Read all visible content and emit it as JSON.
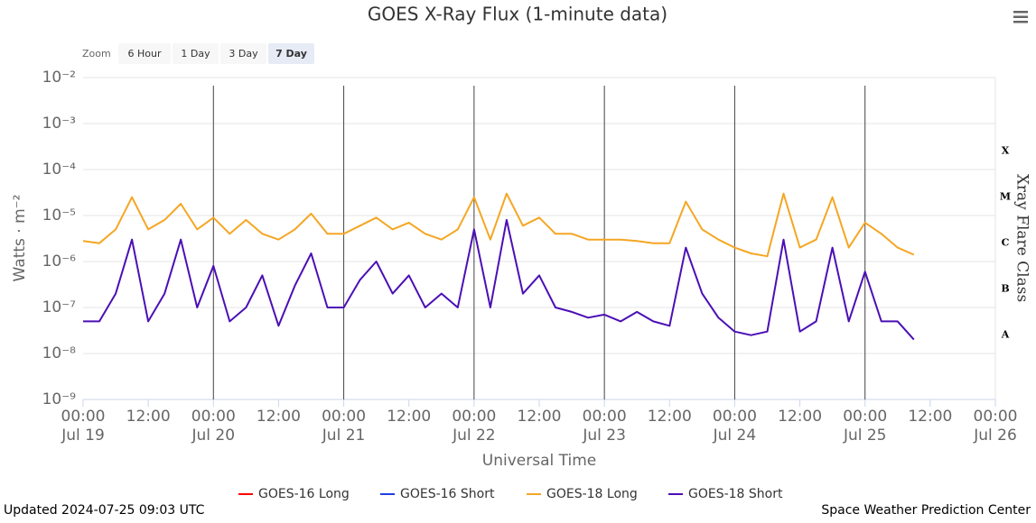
{
  "chart_data": {
    "type": "line",
    "title": "GOES X-Ray Flux (1-minute data)",
    "zoom": {
      "label": "Zoom",
      "buttons": [
        "6 Hour",
        "1 Day",
        "3 Day",
        "7 Day"
      ],
      "selected": 3
    },
    "y_label": "Watts · m⁻²",
    "x_label": "Universal Time",
    "y2_label": "Xray Flare Class",
    "updated": "Updated 2024-07-25 09:03 UTC",
    "credit": "Space Weather Prediction Center",
    "log_scale": true,
    "grid": true,
    "day_lines": true,
    "legend": "bottom",
    "ylim": [
      1e-09,
      0.01
    ],
    "yticks": [
      {
        "value": 1e-09,
        "label": "10⁻⁹"
      },
      {
        "value": 1e-08,
        "label": "10⁻⁸"
      },
      {
        "value": 1e-07,
        "label": "10⁻⁷"
      },
      {
        "value": 1e-06,
        "label": "10⁻⁶"
      },
      {
        "value": 1e-05,
        "label": "10⁻⁵"
      },
      {
        "value": 0.0001,
        "label": "10⁻⁴"
      },
      {
        "value": 0.001,
        "label": "10⁻³"
      },
      {
        "value": 0.01,
        "label": "10⁻²"
      }
    ],
    "flare_classes": [
      {
        "label": "A",
        "from": 1e-08,
        "to": 1e-07
      },
      {
        "label": "B",
        "from": 1e-07,
        "to": 1e-06
      },
      {
        "label": "C",
        "from": 1e-06,
        "to": 1e-05
      },
      {
        "label": "M",
        "from": 1e-05,
        "to": 0.0001
      },
      {
        "label": "X",
        "from": 0.0001,
        "to": 0.001
      }
    ],
    "xlim": [
      "Jul 19 00:00",
      "Jul 26 00:00"
    ],
    "xticks": [
      {
        "value": "Jul 19 00:00",
        "label": [
          "00:00",
          "Jul 19"
        ]
      },
      {
        "value": "Jul 19 12:00",
        "label": "12:00"
      },
      {
        "value": "Jul 20 00:00",
        "label": [
          "00:00",
          "Jul 20"
        ]
      },
      {
        "value": "Jul 20 12:00",
        "label": "12:00"
      },
      {
        "value": "Jul 21 00:00",
        "label": [
          "00:00",
          "Jul 21"
        ]
      },
      {
        "value": "Jul 21 12:00",
        "label": "12:00"
      },
      {
        "value": "Jul 22 00:00",
        "label": [
          "00:00",
          "Jul 22"
        ]
      },
      {
        "value": "Jul 22 12:00",
        "label": "12:00"
      },
      {
        "value": "Jul 23 00:00",
        "label": [
          "00:00",
          "Jul 23"
        ]
      },
      {
        "value": "Jul 23 12:00",
        "label": "12:00"
      },
      {
        "value": "Jul 24 00:00",
        "label": [
          "00:00",
          "Jul 24"
        ]
      },
      {
        "value": "Jul 24 12:00",
        "label": "12:00"
      },
      {
        "value": "Jul 25 00:00",
        "label": [
          "00:00",
          "Jul 25"
        ]
      },
      {
        "value": "Jul 25 12:00",
        "label": "12:00"
      },
      {
        "value": "Jul 26 00:00",
        "label": [
          "00:00",
          "Jul 26"
        ]
      }
    ],
    "x": [
      "Jul 19 00:00",
      "Jul 19 03:00",
      "Jul 19 06:00",
      "Jul 19 09:00",
      "Jul 19 12:00",
      "Jul 19 15:00",
      "Jul 19 18:00",
      "Jul 19 21:00",
      "Jul 20 00:00",
      "Jul 20 03:00",
      "Jul 20 06:00",
      "Jul 20 09:00",
      "Jul 20 12:00",
      "Jul 20 15:00",
      "Jul 20 18:00",
      "Jul 20 21:00",
      "Jul 21 00:00",
      "Jul 21 03:00",
      "Jul 21 06:00",
      "Jul 21 09:00",
      "Jul 21 12:00",
      "Jul 21 15:00",
      "Jul 21 18:00",
      "Jul 21 21:00",
      "Jul 22 00:00",
      "Jul 22 03:00",
      "Jul 22 06:00",
      "Jul 22 09:00",
      "Jul 22 12:00",
      "Jul 22 15:00",
      "Jul 22 18:00",
      "Jul 22 21:00",
      "Jul 23 00:00",
      "Jul 23 03:00",
      "Jul 23 06:00",
      "Jul 23 09:00",
      "Jul 23 12:00",
      "Jul 23 15:00",
      "Jul 23 18:00",
      "Jul 23 21:00",
      "Jul 24 00:00",
      "Jul 24 03:00",
      "Jul 24 06:00",
      "Jul 24 09:00",
      "Jul 24 12:00",
      "Jul 24 15:00",
      "Jul 24 18:00",
      "Jul 24 21:00",
      "Jul 25 00:00",
      "Jul 25 03:00",
      "Jul 25 06:00",
      "Jul 25 09:00"
    ],
    "series": [
      {
        "name": "GOES-16 Long",
        "color": "#ff0000",
        "values": [
          null,
          null,
          null,
          null,
          null,
          null,
          null,
          null,
          null,
          null,
          null,
          null,
          null,
          null,
          null,
          null,
          null,
          null,
          null,
          null,
          null,
          null,
          null,
          null,
          null,
          null,
          null,
          null,
          null,
          null,
          null,
          null,
          null,
          null,
          null,
          null,
          null,
          null,
          null,
          null,
          null,
          null,
          null,
          null,
          null,
          null,
          null,
          null,
          null,
          null,
          null,
          null
        ]
      },
      {
        "name": "GOES-16 Short",
        "color": "#1f3fe0",
        "values": [
          null,
          null,
          null,
          null,
          null,
          null,
          null,
          null,
          null,
          null,
          null,
          null,
          null,
          null,
          null,
          null,
          null,
          null,
          null,
          null,
          null,
          null,
          null,
          null,
          null,
          null,
          null,
          null,
          null,
          null,
          null,
          null,
          null,
          null,
          null,
          null,
          null,
          null,
          null,
          null,
          null,
          null,
          null,
          null,
          null,
          null,
          null,
          null,
          null,
          null,
          null,
          null
        ]
      },
      {
        "name": "GOES-18 Long",
        "color": "#f5a623",
        "values": [
          2.8e-06,
          2.5e-06,
          5e-06,
          2.5e-05,
          5e-06,
          8e-06,
          1.8e-05,
          5e-06,
          9e-06,
          4e-06,
          8e-06,
          4e-06,
          3e-06,
          5e-06,
          1.1e-05,
          4e-06,
          4e-06,
          6e-06,
          9e-06,
          5e-06,
          7e-06,
          4e-06,
          3e-06,
          5e-06,
          2.5e-05,
          3e-06,
          3e-05,
          6e-06,
          9e-06,
          4e-06,
          4e-06,
          3e-06,
          3e-06,
          3e-06,
          2.8e-06,
          2.5e-06,
          2.5e-06,
          2e-05,
          5e-06,
          3e-06,
          2e-06,
          1.5e-06,
          1.3e-06,
          3e-05,
          2e-06,
          3e-06,
          2.5e-05,
          2e-06,
          7e-06,
          4e-06,
          2e-06,
          1.4e-06
        ]
      },
      {
        "name": "GOES-18 Short",
        "color": "#4b0fb5",
        "values": [
          5e-08,
          5e-08,
          2e-07,
          3e-06,
          5e-08,
          2e-07,
          3e-06,
          1e-07,
          8e-07,
          5e-08,
          1e-07,
          5e-07,
          4e-08,
          3e-07,
          1.5e-06,
          1e-07,
          1e-07,
          4e-07,
          1e-06,
          2e-07,
          5e-07,
          1e-07,
          2e-07,
          1e-07,
          5e-06,
          1e-07,
          8e-06,
          2e-07,
          5e-07,
          1e-07,
          8e-08,
          6e-08,
          7e-08,
          5e-08,
          8e-08,
          5e-08,
          4e-08,
          2e-06,
          2e-07,
          6e-08,
          3e-08,
          2.5e-08,
          3e-08,
          3e-06,
          3e-08,
          5e-08,
          2e-06,
          5e-08,
          6e-07,
          5e-08,
          5e-08,
          2e-08
        ]
      }
    ]
  }
}
